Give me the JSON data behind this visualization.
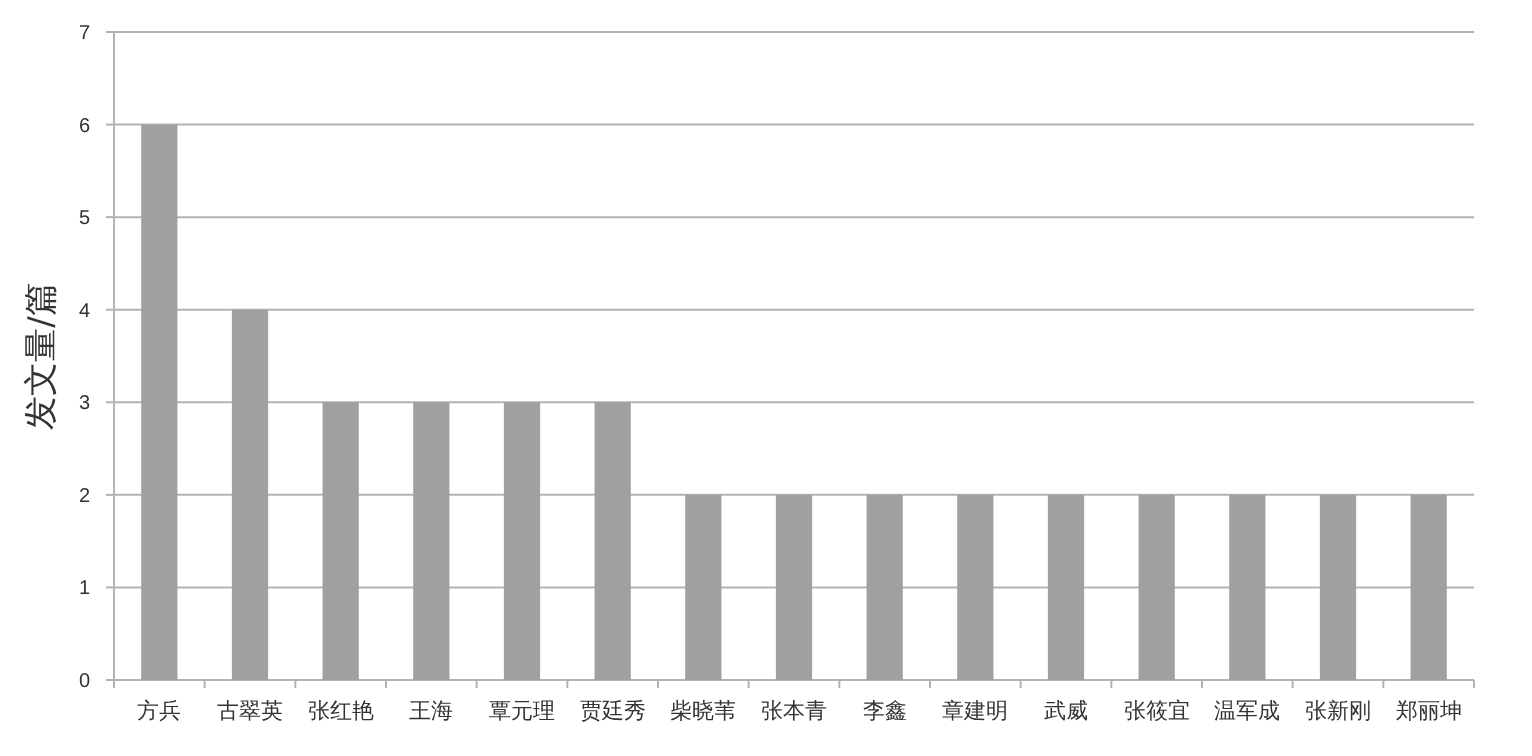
{
  "chart_data": {
    "type": "bar",
    "ylabel": "发文量/篇",
    "categories": [
      "方兵",
      "古翠英",
      "张红艳",
      "王海",
      "覃元理",
      "贾廷秀",
      "柴晓苇",
      "张本青",
      "李鑫",
      "章建明",
      "武威",
      "张筱宜",
      "温军成",
      "张新刚",
      "郑丽坤"
    ],
    "values": [
      6,
      4,
      3,
      3,
      3,
      3,
      2,
      2,
      2,
      2,
      2,
      2,
      2,
      2,
      2
    ],
    "color": "#a0a0a0",
    "ylim": [
      0,
      7
    ],
    "yticks": [
      0,
      1,
      2,
      3,
      4,
      5,
      6,
      7
    ],
    "grid": "y"
  }
}
